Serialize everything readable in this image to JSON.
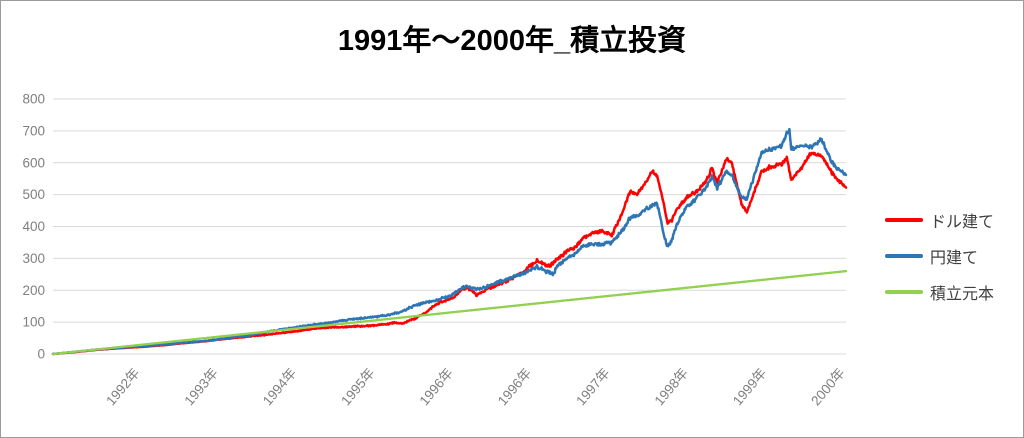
{
  "title": "1991年～2000年_積立投資",
  "legend": {
    "items": [
      {
        "key": "dollar",
        "label": "ドル建て",
        "color": "#FF0000"
      },
      {
        "key": "yen",
        "label": "円建て",
        "color": "#2E75B6"
      },
      {
        "key": "principal",
        "label": "積立元本",
        "color": "#92D050"
      }
    ]
  },
  "axis_style": {
    "grid_color": "#D9D9D9",
    "tick_text_color": "#7F7F7F"
  },
  "chart_data": {
    "type": "line",
    "title": "1991年～2000年_積立投資",
    "xlabel": "",
    "ylabel": "",
    "ylim": [
      0,
      800
    ],
    "grid": true,
    "legend_position": "right",
    "x_range_years": [
      1991.0,
      2000.11
    ],
    "y_ticks": [
      0,
      100,
      200,
      300,
      400,
      500,
      600,
      700,
      800
    ],
    "x_ticks": [
      {
        "label": "1992年",
        "t": 1991.9
      },
      {
        "label": "1993年",
        "t": 1992.8
      },
      {
        "label": "1994年",
        "t": 1993.7
      },
      {
        "label": "1995年",
        "t": 1994.6
      },
      {
        "label": "1996年",
        "t": 1995.5
      },
      {
        "label": "1996年",
        "t": 1996.4
      },
      {
        "label": "1997年",
        "t": 1997.3
      },
      {
        "label": "1998年",
        "t": 1998.2
      },
      {
        "label": "1999年",
        "t": 1999.1
      },
      {
        "label": "2000年",
        "t": 2000.0
      }
    ],
    "series": [
      {
        "key": "dollar",
        "name": "ドル建て",
        "color": "#FF0000",
        "points": [
          [
            1991.0,
            0
          ],
          [
            1991.25,
            6
          ],
          [
            1991.5,
            13
          ],
          [
            1991.75,
            18
          ],
          [
            1992.0,
            22
          ],
          [
            1992.25,
            27
          ],
          [
            1992.5,
            34
          ],
          [
            1992.75,
            40
          ],
          [
            1993.0,
            48
          ],
          [
            1993.25,
            55
          ],
          [
            1993.5,
            62
          ],
          [
            1993.75,
            70
          ],
          [
            1994.0,
            80
          ],
          [
            1994.17,
            83
          ],
          [
            1994.33,
            85
          ],
          [
            1994.5,
            87
          ],
          [
            1994.67,
            89
          ],
          [
            1994.83,
            93
          ],
          [
            1994.92,
            99
          ],
          [
            1995.0,
            95
          ],
          [
            1995.13,
            108
          ],
          [
            1995.25,
            124
          ],
          [
            1995.36,
            149
          ],
          [
            1995.47,
            165
          ],
          [
            1995.59,
            175
          ],
          [
            1995.7,
            202
          ],
          [
            1995.76,
            207
          ],
          [
            1995.81,
            198
          ],
          [
            1995.87,
            186
          ],
          [
            1996.0,
            205
          ],
          [
            1996.1,
            215
          ],
          [
            1996.25,
            235
          ],
          [
            1996.4,
            255
          ],
          [
            1996.5,
            280
          ],
          [
            1996.56,
            293
          ],
          [
            1996.68,
            275
          ],
          [
            1996.75,
            284
          ],
          [
            1996.8,
            300
          ],
          [
            1996.9,
            322
          ],
          [
            1997.0,
            335
          ],
          [
            1997.1,
            365
          ],
          [
            1997.19,
            380
          ],
          [
            1997.3,
            385
          ],
          [
            1997.42,
            372
          ],
          [
            1997.54,
            443
          ],
          [
            1997.63,
            511
          ],
          [
            1997.71,
            501
          ],
          [
            1997.82,
            542
          ],
          [
            1997.88,
            574
          ],
          [
            1997.94,
            558
          ],
          [
            1998.02,
            464
          ],
          [
            1998.06,
            412
          ],
          [
            1998.11,
            420
          ],
          [
            1998.17,
            455
          ],
          [
            1998.28,
            490
          ],
          [
            1998.4,
            510
          ],
          [
            1998.51,
            545
          ],
          [
            1998.57,
            584
          ],
          [
            1998.63,
            537
          ],
          [
            1998.74,
            615
          ],
          [
            1998.8,
            598
          ],
          [
            1998.91,
            470
          ],
          [
            1998.97,
            443
          ],
          [
            1999.03,
            490
          ],
          [
            1999.14,
            574
          ],
          [
            1999.25,
            589
          ],
          [
            1999.37,
            595
          ],
          [
            1999.43,
            615
          ],
          [
            1999.48,
            548
          ],
          [
            1999.6,
            584
          ],
          [
            1999.71,
            631
          ],
          [
            1999.83,
            621
          ],
          [
            1999.94,
            574
          ],
          [
            2000.0,
            548
          ],
          [
            2000.06,
            537
          ],
          [
            2000.11,
            521
          ]
        ]
      },
      {
        "key": "yen",
        "name": "円建て",
        "color": "#2E75B6",
        "points": [
          [
            1991.0,
            0
          ],
          [
            1991.25,
            7
          ],
          [
            1991.5,
            14
          ],
          [
            1991.75,
            19
          ],
          [
            1992.0,
            24
          ],
          [
            1992.25,
            29
          ],
          [
            1992.5,
            36
          ],
          [
            1992.75,
            41
          ],
          [
            1993.0,
            50
          ],
          [
            1993.25,
            58
          ],
          [
            1993.5,
            72
          ],
          [
            1993.75,
            82
          ],
          [
            1994.0,
            92
          ],
          [
            1994.17,
            98
          ],
          [
            1994.33,
            105
          ],
          [
            1994.5,
            111
          ],
          [
            1994.67,
            116
          ],
          [
            1994.83,
            122
          ],
          [
            1995.0,
            132
          ],
          [
            1995.13,
            149
          ],
          [
            1995.25,
            160
          ],
          [
            1995.36,
            165
          ],
          [
            1995.47,
            175
          ],
          [
            1995.59,
            186
          ],
          [
            1995.7,
            207
          ],
          [
            1995.76,
            212
          ],
          [
            1995.81,
            207
          ],
          [
            1995.87,
            203
          ],
          [
            1996.0,
            212
          ],
          [
            1996.1,
            225
          ],
          [
            1996.25,
            238
          ],
          [
            1996.4,
            252
          ],
          [
            1996.5,
            265
          ],
          [
            1996.56,
            272
          ],
          [
            1996.68,
            258
          ],
          [
            1996.75,
            252
          ],
          [
            1996.8,
            278
          ],
          [
            1996.9,
            298
          ],
          [
            1997.0,
            313
          ],
          [
            1997.1,
            340
          ],
          [
            1997.19,
            344
          ],
          [
            1997.3,
            345
          ],
          [
            1997.42,
            350
          ],
          [
            1997.54,
            386
          ],
          [
            1997.63,
            427
          ],
          [
            1997.71,
            433
          ],
          [
            1997.82,
            455
          ],
          [
            1997.88,
            464
          ],
          [
            1997.94,
            474
          ],
          [
            1998.02,
            370
          ],
          [
            1998.06,
            338
          ],
          [
            1998.11,
            355
          ],
          [
            1998.17,
            410
          ],
          [
            1998.28,
            460
          ],
          [
            1998.4,
            490
          ],
          [
            1998.51,
            525
          ],
          [
            1998.57,
            558
          ],
          [
            1998.63,
            521
          ],
          [
            1998.74,
            574
          ],
          [
            1998.8,
            560
          ],
          [
            1998.91,
            490
          ],
          [
            1998.97,
            486
          ],
          [
            1999.03,
            537
          ],
          [
            1999.14,
            631
          ],
          [
            1999.25,
            642
          ],
          [
            1999.37,
            652
          ],
          [
            1999.43,
            694
          ],
          [
            1999.46,
            700
          ],
          [
            1999.48,
            642
          ],
          [
            1999.6,
            655
          ],
          [
            1999.71,
            650
          ],
          [
            1999.83,
            673
          ],
          [
            1999.94,
            605
          ],
          [
            2000.0,
            584
          ],
          [
            2000.06,
            574
          ],
          [
            2000.11,
            563
          ]
        ]
      },
      {
        "key": "principal",
        "name": "積立元本",
        "color": "#92D050",
        "points": [
          [
            1991.0,
            0
          ],
          [
            2000.11,
            260
          ]
        ]
      }
    ]
  }
}
